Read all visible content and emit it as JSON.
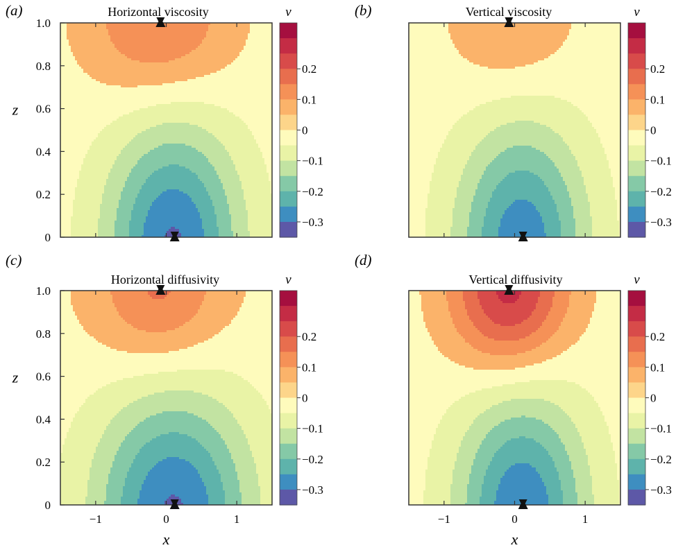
{
  "figure": {
    "panels": [
      {
        "tag": "(a)",
        "title": "Horizontal viscosity"
      },
      {
        "tag": "(b)",
        "title": "Vertical viscosity"
      },
      {
        "tag": "(c)",
        "title": "Horizontal diffusivity"
      },
      {
        "tag": "(d)",
        "title": "Vertical diffusivity"
      }
    ],
    "xlabel": "x",
    "ylabel": "z",
    "colorbar_label": "v"
  },
  "chart_data": [
    {
      "type": "heatmap",
      "panel": "(a)",
      "title": "Horizontal viscosity",
      "xlabel": "",
      "ylabel": "z",
      "xlim": [
        -1.5,
        1.5
      ],
      "ylim": [
        0,
        1.0
      ],
      "xticks": [
        -1,
        0,
        1
      ],
      "yticks": [
        "0",
        "0.2",
        "0.4",
        "0.6",
        "0.8",
        "1.0"
      ],
      "colorbar": {
        "label": "v",
        "range": [
          -0.3,
          0.3
        ],
        "ticks": [
          "0.2",
          "0.1",
          "0",
          "−0.1",
          "−0.2",
          "−0.3"
        ]
      },
      "field": {
        "bottom_min": -0.28,
        "bottom_width": 0.52,
        "top_max": 0.1,
        "top_shift": -0.1,
        "top_width": 0.55,
        "top_side": 0.6,
        "top_spread": 0.6
      },
      "markers": [
        {
          "x": -0.08,
          "z": 1.0
        },
        {
          "x": 0.12,
          "z": 0.0
        }
      ]
    },
    {
      "type": "heatmap",
      "panel": "(b)",
      "title": "Vertical viscosity",
      "xlabel": "",
      "ylabel": "",
      "xlim": [
        -1.5,
        1.5
      ],
      "ylim": [
        0,
        1.0
      ],
      "xticks": [
        -1,
        0,
        1
      ],
      "yticks": [],
      "colorbar": {
        "label": "v",
        "range": [
          -0.3,
          0.3
        ],
        "ticks": [
          "0.2",
          "0.1",
          "0",
          "−0.1",
          "−0.2",
          "−0.3"
        ]
      },
      "field": {
        "bottom_min": -0.26,
        "bottom_width": 0.5,
        "top_max": 0.06,
        "top_shift": -0.05,
        "top_width": 0.45,
        "top_side": 0.7,
        "top_spread": 0.5
      },
      "markers": [
        {
          "x": -0.08,
          "z": 1.0
        },
        {
          "x": 0.12,
          "z": 0.0
        }
      ]
    },
    {
      "type": "heatmap",
      "panel": "(c)",
      "title": "Horizontal diffusivity",
      "xlabel": "x",
      "ylabel": "z",
      "xlim": [
        -1.5,
        1.5
      ],
      "ylim": [
        0,
        1.0
      ],
      "xticks": [
        -1,
        0,
        1
      ],
      "yticks": [
        "0",
        "0.2",
        "0.4",
        "0.6",
        "0.8",
        "1.0"
      ],
      "colorbar": {
        "label": "v",
        "range": [
          -0.3,
          0.3
        ],
        "ticks": [
          "0.2",
          "0.1",
          "0",
          "−0.1",
          "−0.2",
          "−0.3"
        ]
      },
      "field": {
        "bottom_min": -0.28,
        "bottom_width": 0.6,
        "top_max": 0.1,
        "top_shift": -0.1,
        "top_width": 0.45,
        "top_side": 0.95,
        "top_spread": 0.7
      },
      "markers": [
        {
          "x": -0.08,
          "z": 1.0
        },
        {
          "x": 0.12,
          "z": 0.0
        }
      ]
    },
    {
      "type": "heatmap",
      "panel": "(d)",
      "title": "Vertical diffusivity",
      "xlabel": "x",
      "ylabel": "",
      "xlim": [
        -1.5,
        1.5
      ],
      "ylim": [
        0,
        1.0
      ],
      "xticks": [
        -1,
        0,
        1
      ],
      "yticks": [],
      "colorbar": {
        "label": "v",
        "range": [
          -0.3,
          0.3
        ],
        "ticks": [
          "0.2",
          "0.1",
          "0",
          "−0.1",
          "−0.2",
          "−0.3"
        ]
      },
      "field": {
        "bottom_min": -0.27,
        "bottom_width": 0.5,
        "top_max": 0.17,
        "top_shift": -0.08,
        "top_width": 0.42,
        "top_side": 0.45,
        "top_spread": 0.8
      },
      "markers": [
        {
          "x": -0.08,
          "z": 1.0
        },
        {
          "x": 0.12,
          "z": 0.0
        }
      ]
    }
  ]
}
